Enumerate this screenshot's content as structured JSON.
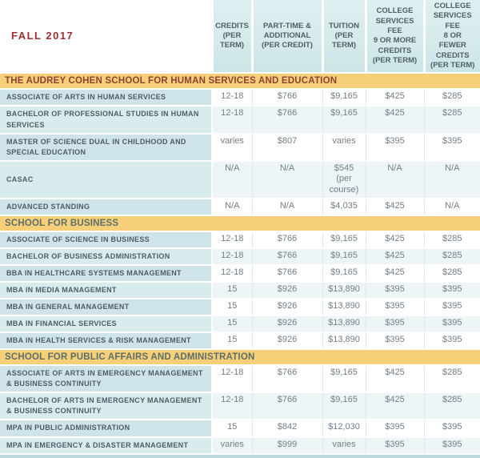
{
  "header": {
    "term_label": "FALL 2017"
  },
  "columns": [
    "CREDITS\n(PER\nTERM)",
    "PART-TIME &\nADDITIONAL\n(PER CREDIT)",
    "TUITION\n(PER\nTERM)",
    "COLLEGE\nSERVICES\nFEE\n9 OR MORE\nCREDITS\n(PER TERM)",
    "COLLEGE\nSERVICES\nFEE\n8 OR\nFEWER\nCREDITS\n(PER TERM)"
  ],
  "sections": [
    {
      "title": "THE AUDREY COHEN SCHOOL FOR HUMAN SERVICES AND EDUCATION",
      "title_color": "#8e4234",
      "rows": [
        {
          "program": "ASSOCIATE OF ARTS IN HUMAN SERVICES",
          "values": [
            "12-18",
            "$766",
            "$9,165",
            "$425",
            "$285"
          ]
        },
        {
          "program": "BACHELOR OF PROFESSIONAL STUDIES IN HUMAN SERVICES",
          "values": [
            "12-18",
            "$766",
            "$9,165",
            "$425",
            "$285"
          ]
        },
        {
          "program": "MASTER OF SCIENCE DUAL IN CHILDHOOD AND SPECIAL EDUCATION",
          "values": [
            "varies",
            "$807",
            "varies",
            "$395",
            "$395"
          ]
        },
        {
          "program": "CASAC",
          "values": [
            "N/A",
            "N/A",
            "$545\n(per\ncourse)",
            "N/A",
            "N/A"
          ]
        },
        {
          "program": "ADVANCED STANDING",
          "values": [
            "N/A",
            "N/A",
            "$4,035",
            "$425",
            "N/A"
          ]
        }
      ]
    },
    {
      "title": "SCHOOL FOR BUSINESS",
      "title_color": "#5d6f6a",
      "rows": [
        {
          "program": "ASSOCIATE OF SCIENCE IN BUSINESS",
          "values": [
            "12-18",
            "$766",
            "$9,165",
            "$425",
            "$285"
          ]
        },
        {
          "program": "BACHELOR OF BUSINESS ADMINISTRATION",
          "values": [
            "12-18",
            "$766",
            "$9,165",
            "$425",
            "$285"
          ]
        },
        {
          "program": "BBA IN HEALTHCARE SYSTEMS MANAGEMENT",
          "values": [
            "12-18",
            "$766",
            "$9,165",
            "$425",
            "$285"
          ]
        },
        {
          "program": "MBA IN MEDIA MANAGEMENT",
          "values": [
            "15",
            "$926",
            "$13,890",
            "$395",
            "$395"
          ]
        },
        {
          "program": "MBA IN GENERAL MANAGEMENT",
          "values": [
            "15",
            "$926",
            "$13,890",
            "$395",
            "$395"
          ]
        },
        {
          "program": "MBA IN FINANCIAL SERVICES",
          "values": [
            "15",
            "$926",
            "$13,890",
            "$395",
            "$395"
          ]
        },
        {
          "program": "MBA IN HEALTH SERVICES & RISK MANAGEMENT",
          "values": [
            "15",
            "$926",
            "$13,890",
            "$395",
            "$395"
          ]
        }
      ]
    },
    {
      "title": "SCHOOL FOR PUBLIC AFFAIRS AND ADMINISTRATION",
      "title_color": "#5d6f6a",
      "rows": [
        {
          "program": "ASSOCIATE OF ARTS IN EMERGENCY MANAGEMENT & BUSINESS CONTINUITY",
          "values": [
            "12-18",
            "$766",
            "$9,165",
            "$425",
            "$285"
          ]
        },
        {
          "program": "BACHELOR OF ARTS IN EMERGENCY MANAGEMENT & BUSINESS CONTINUITY",
          "values": [
            "12-18",
            "$766",
            "$9,165",
            "$425",
            "$285"
          ]
        },
        {
          "program": "MPA IN PUBLIC ADMINISTRATION",
          "values": [
            "15",
            "$842",
            "$12,030",
            "$395",
            "$395"
          ]
        },
        {
          "program": "MPA IN EMERGENCY & DISASTER MANAGEMENT",
          "values": [
            "varies",
            "$999",
            "varies",
            "$395",
            "$395"
          ]
        }
      ]
    }
  ],
  "colors": {
    "section_bar": "#f6cf78",
    "header_cell_bg": "#cde5e7",
    "label_cell_bg": "#cee4e8",
    "label_cell_bg_alt": "#d8ebed",
    "value_row_stripe": "#eef5f6",
    "bottom_strip": "#bcd9dc",
    "term_label_color": "#9d2f32",
    "section_title_color_first": "#8e4234",
    "section_title_color_rest": "#5d6f6a",
    "body_text_color": "#4c5e68",
    "value_text_color": "#727e88"
  }
}
